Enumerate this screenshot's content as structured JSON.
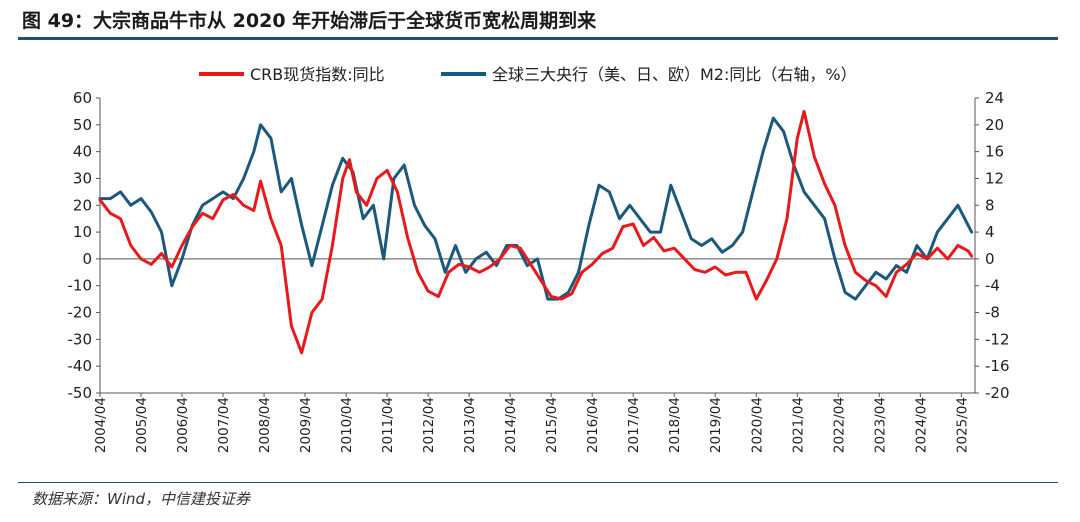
{
  "title": "图 49：大宗商品牛市从 2020 年开始滞后于全球货币宽松周期到来",
  "source": "数据来源：Wind，中信建投证券",
  "colors": {
    "crb": "#e8191b",
    "m2": "#1b587c",
    "rule": "#1f4e79"
  },
  "chart_data": {
    "type": "line",
    "legend_position": "top-center",
    "grid": false,
    "x_tick_labels": [
      "2004/04",
      "2005/04",
      "2006/04",
      "2007/04",
      "2008/04",
      "2009/04",
      "2010/04",
      "2011/04",
      "2012/04",
      "2013/04",
      "2014/04",
      "2015/04",
      "2016/04",
      "2017/04",
      "2018/04",
      "2019/04",
      "2020/04",
      "2021/04",
      "2022/04",
      "2023/04",
      "2024/04",
      "2025/04"
    ],
    "y_left": {
      "min": -50,
      "max": 60,
      "ticks": [
        "60",
        "50",
        "40",
        "30",
        "20",
        "10",
        "0",
        "-10",
        "-20",
        "-30",
        "-40",
        "-50"
      ]
    },
    "y_right": {
      "min": -20,
      "max": 24,
      "ticks": [
        "24",
        "20",
        "16",
        "12",
        "8",
        "4",
        "0",
        "-4",
        "-8",
        "-12",
        "-16",
        "-20"
      ]
    },
    "series": [
      {
        "name": "CRB现货指数:同比",
        "axis": "left",
        "points": [
          [
            "2004-04",
            22
          ],
          [
            "2004-07",
            17
          ],
          [
            "2004-10",
            15
          ],
          [
            "2005-01",
            5
          ],
          [
            "2005-04",
            0
          ],
          [
            "2005-07",
            -2
          ],
          [
            "2005-10",
            2
          ],
          [
            "2006-01",
            -3
          ],
          [
            "2006-04",
            5
          ],
          [
            "2006-07",
            12
          ],
          [
            "2006-10",
            17
          ],
          [
            "2007-01",
            15
          ],
          [
            "2007-04",
            22
          ],
          [
            "2007-07",
            24
          ],
          [
            "2007-10",
            20
          ],
          [
            "2008-01",
            18
          ],
          [
            "2008-03",
            29
          ],
          [
            "2008-06",
            15
          ],
          [
            "2008-09",
            5
          ],
          [
            "2008-12",
            -25
          ],
          [
            "2009-03",
            -35
          ],
          [
            "2009-06",
            -20
          ],
          [
            "2009-09",
            -15
          ],
          [
            "2009-12",
            5
          ],
          [
            "2010-03",
            30
          ],
          [
            "2010-05",
            37
          ],
          [
            "2010-07",
            25
          ],
          [
            "2010-10",
            20
          ],
          [
            "2011-01",
            30
          ],
          [
            "2011-04",
            33
          ],
          [
            "2011-07",
            25
          ],
          [
            "2011-10",
            8
          ],
          [
            "2012-01",
            -5
          ],
          [
            "2012-04",
            -12
          ],
          [
            "2012-07",
            -14
          ],
          [
            "2012-10",
            -5
          ],
          [
            "2013-01",
            -2
          ],
          [
            "2013-04",
            -3
          ],
          [
            "2013-07",
            -5
          ],
          [
            "2013-10",
            -3
          ],
          [
            "2014-01",
            0
          ],
          [
            "2014-04",
            5
          ],
          [
            "2014-07",
            4
          ],
          [
            "2014-10",
            -2
          ],
          [
            "2015-01",
            -8
          ],
          [
            "2015-04",
            -14
          ],
          [
            "2015-07",
            -15
          ],
          [
            "2015-10",
            -13
          ],
          [
            "2016-01",
            -5
          ],
          [
            "2016-04",
            -2
          ],
          [
            "2016-07",
            2
          ],
          [
            "2016-10",
            4
          ],
          [
            "2017-01",
            12
          ],
          [
            "2017-04",
            13
          ],
          [
            "2017-07",
            5
          ],
          [
            "2017-10",
            8
          ],
          [
            "2018-01",
            3
          ],
          [
            "2018-04",
            4
          ],
          [
            "2018-07",
            0
          ],
          [
            "2018-10",
            -4
          ],
          [
            "2019-01",
            -5
          ],
          [
            "2019-04",
            -3
          ],
          [
            "2019-07",
            -6
          ],
          [
            "2019-10",
            -5
          ],
          [
            "2020-01",
            -5
          ],
          [
            "2020-04",
            -15
          ],
          [
            "2020-07",
            -8
          ],
          [
            "2020-10",
            0
          ],
          [
            "2021-01",
            15
          ],
          [
            "2021-04",
            45
          ],
          [
            "2021-06",
            55
          ],
          [
            "2021-09",
            38
          ],
          [
            "2021-12",
            28
          ],
          [
            "2022-03",
            20
          ],
          [
            "2022-06",
            5
          ],
          [
            "2022-09",
            -5
          ],
          [
            "2022-12",
            -8
          ],
          [
            "2023-03",
            -10
          ],
          [
            "2023-06",
            -14
          ],
          [
            "2023-09",
            -5
          ],
          [
            "2023-12",
            -2
          ],
          [
            "2024-03",
            2
          ],
          [
            "2024-06",
            0
          ],
          [
            "2024-09",
            4
          ],
          [
            "2024-12",
            0
          ],
          [
            "2025-03",
            5
          ],
          [
            "2025-06",
            3
          ],
          [
            "2025-07",
            1
          ]
        ]
      },
      {
        "name": "全球三大央行（美、日、欧）M2:同比（右轴，%）",
        "axis": "right",
        "points": [
          [
            "2004-04",
            9
          ],
          [
            "2004-07",
            9
          ],
          [
            "2004-10",
            10
          ],
          [
            "2005-01",
            8
          ],
          [
            "2005-04",
            9
          ],
          [
            "2005-07",
            7
          ],
          [
            "2005-10",
            4
          ],
          [
            "2006-01",
            -4
          ],
          [
            "2006-04",
            0
          ],
          [
            "2006-07",
            5
          ],
          [
            "2006-10",
            8
          ],
          [
            "2007-01",
            9
          ],
          [
            "2007-04",
            10
          ],
          [
            "2007-07",
            9
          ],
          [
            "2007-10",
            12
          ],
          [
            "2008-01",
            16
          ],
          [
            "2008-03",
            20
          ],
          [
            "2008-06",
            18
          ],
          [
            "2008-09",
            10
          ],
          [
            "2008-12",
            12
          ],
          [
            "2009-03",
            5
          ],
          [
            "2009-06",
            -1
          ],
          [
            "2009-09",
            5
          ],
          [
            "2009-12",
            11
          ],
          [
            "2010-03",
            15
          ],
          [
            "2010-06",
            13
          ],
          [
            "2010-09",
            6
          ],
          [
            "2010-12",
            8
          ],
          [
            "2011-03",
            0
          ],
          [
            "2011-06",
            12
          ],
          [
            "2011-09",
            14
          ],
          [
            "2011-12",
            8
          ],
          [
            "2012-03",
            5
          ],
          [
            "2012-06",
            3
          ],
          [
            "2012-09",
            -2
          ],
          [
            "2012-12",
            2
          ],
          [
            "2013-03",
            -2
          ],
          [
            "2013-06",
            0
          ],
          [
            "2013-09",
            1
          ],
          [
            "2013-12",
            -1
          ],
          [
            "2014-03",
            2
          ],
          [
            "2014-06",
            2
          ],
          [
            "2014-09",
            -1
          ],
          [
            "2014-12",
            0
          ],
          [
            "2015-03",
            -6
          ],
          [
            "2015-06",
            -6
          ],
          [
            "2015-09",
            -5
          ],
          [
            "2015-12",
            -2
          ],
          [
            "2016-03",
            5
          ],
          [
            "2016-06",
            11
          ],
          [
            "2016-09",
            10
          ],
          [
            "2016-12",
            6
          ],
          [
            "2017-03",
            8
          ],
          [
            "2017-06",
            6
          ],
          [
            "2017-09",
            4
          ],
          [
            "2017-12",
            4
          ],
          [
            "2018-03",
            11
          ],
          [
            "2018-06",
            7
          ],
          [
            "2018-09",
            3
          ],
          [
            "2018-12",
            2
          ],
          [
            "2019-03",
            3
          ],
          [
            "2019-06",
            1
          ],
          [
            "2019-09",
            2
          ],
          [
            "2019-12",
            4
          ],
          [
            "2020-03",
            10
          ],
          [
            "2020-06",
            16
          ],
          [
            "2020-09",
            21
          ],
          [
            "2020-12",
            19
          ],
          [
            "2021-03",
            14
          ],
          [
            "2021-06",
            10
          ],
          [
            "2021-09",
            8
          ],
          [
            "2021-12",
            6
          ],
          [
            "2022-03",
            0
          ],
          [
            "2022-06",
            -5
          ],
          [
            "2022-09",
            -6
          ],
          [
            "2022-12",
            -4
          ],
          [
            "2023-03",
            -2
          ],
          [
            "2023-06",
            -3
          ],
          [
            "2023-09",
            -1
          ],
          [
            "2023-12",
            -2
          ],
          [
            "2024-03",
            2
          ],
          [
            "2024-06",
            0
          ],
          [
            "2024-09",
            4
          ],
          [
            "2024-12",
            6
          ],
          [
            "2025-03",
            8
          ],
          [
            "2025-06",
            5
          ],
          [
            "2025-07",
            4
          ]
        ]
      }
    ]
  }
}
